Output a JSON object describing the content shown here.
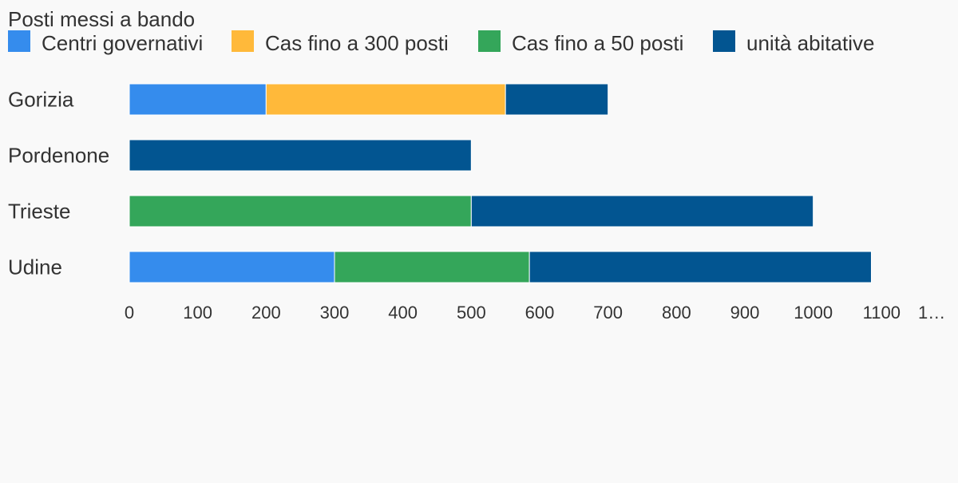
{
  "chart_data": {
    "type": "bar",
    "orientation": "horizontal",
    "stacked": true,
    "legend_title": "Posti messi a bando",
    "legend_position": "top",
    "categories": [
      "Gorizia",
      "Pordenone",
      "Trieste",
      "Udine"
    ],
    "series": [
      {
        "name": "Centri governativi",
        "color": "#358ced",
        "values": [
          200,
          0,
          0,
          300
        ]
      },
      {
        "name": "Cas fino a 300 posti",
        "color": "#ffb93a",
        "values": [
          350,
          0,
          0,
          0
        ]
      },
      {
        "name": "Cas fino a 50 posti",
        "color": "#34a65a",
        "values": [
          0,
          0,
          500,
          285
        ]
      },
      {
        "name": "unità abitative",
        "color": "#025591",
        "values": [
          150,
          500,
          500,
          500
        ]
      }
    ],
    "x_ticks": [
      "0",
      "100",
      "200",
      "300",
      "400",
      "500",
      "600",
      "700",
      "800",
      "900",
      "1000",
      "1100",
      "1…"
    ],
    "xlim": [
      0,
      1200
    ],
    "grid": false
  }
}
